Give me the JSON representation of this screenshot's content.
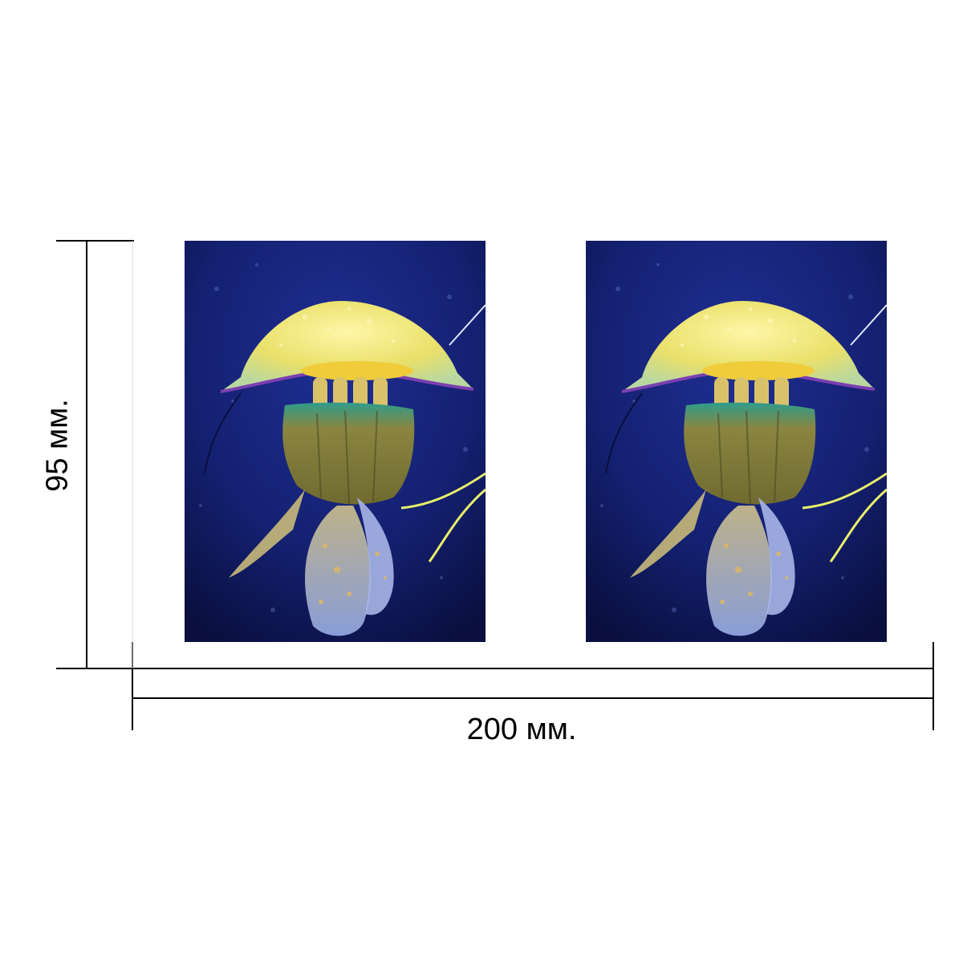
{
  "dimensions": {
    "width_label": "200 мм.",
    "height_label": "95 мм."
  },
  "panels": [
    {
      "subject": "jellyfish-photo"
    },
    {
      "subject": "jellyfish-photo"
    }
  ],
  "colors": {
    "background": "#ffffff",
    "line": "#000000",
    "water_dark": "#0b1040",
    "water_mid": "#1b2b8a",
    "bell_yellow": "#f2e66a",
    "bell_edge": "#7b3fb0",
    "oral_arms": "#8a8540",
    "tentacle_blue": "#9fb2e6",
    "glow_thread": "#e8f06a"
  }
}
